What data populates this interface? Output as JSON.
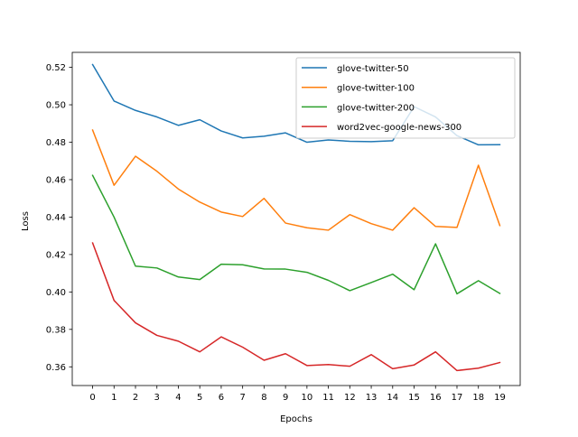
{
  "chart_data": {
    "type": "line",
    "title": "",
    "xlabel": "Epochs",
    "ylabel": "Loss",
    "x": [
      0,
      1,
      2,
      3,
      4,
      5,
      6,
      7,
      8,
      9,
      10,
      11,
      12,
      13,
      14,
      15,
      16,
      17,
      18,
      19
    ],
    "xlim": [
      -0.95,
      19.95
    ],
    "ylim": [
      0.35,
      0.528
    ],
    "yticks": [
      0.36,
      0.38,
      0.4,
      0.42,
      0.44,
      0.46,
      0.48,
      0.5,
      0.52
    ],
    "ytick_labels": [
      "0.36",
      "0.38",
      "0.40",
      "0.42",
      "0.44",
      "0.46",
      "0.48",
      "0.50",
      "0.52"
    ],
    "xtick_labels": [
      "0",
      "1",
      "2",
      "3",
      "4",
      "5",
      "6",
      "7",
      "8",
      "9",
      "10",
      "11",
      "12",
      "13",
      "14",
      "15",
      "16",
      "17",
      "18",
      "19"
    ],
    "grid": false,
    "legend_position": "upper-right",
    "series": [
      {
        "name": "glove-twitter-50",
        "color": "#1f77b4",
        "values": [
          0.5215,
          0.502,
          0.497,
          0.4935,
          0.489,
          0.492,
          0.486,
          0.4823,
          0.4832,
          0.485,
          0.48,
          0.4812,
          0.4805,
          0.4803,
          0.4808,
          0.499,
          0.4935,
          0.4835,
          0.4786,
          0.4787
        ]
      },
      {
        "name": "glove-twitter-100",
        "color": "#ff7f0e",
        "values": [
          0.4865,
          0.457,
          0.4725,
          0.4645,
          0.455,
          0.448,
          0.4427,
          0.4403,
          0.45,
          0.4368,
          0.4343,
          0.433,
          0.4413,
          0.4365,
          0.433,
          0.445,
          0.435,
          0.4345,
          0.4677,
          0.4355
        ]
      },
      {
        "name": "glove-twitter-200",
        "color": "#2ca02c",
        "values": [
          0.4623,
          0.44,
          0.4138,
          0.4128,
          0.408,
          0.4066,
          0.4148,
          0.4145,
          0.4123,
          0.4122,
          0.4105,
          0.4062,
          0.4007,
          0.405,
          0.4095,
          0.4012,
          0.4257,
          0.399,
          0.406,
          0.3992
        ]
      },
      {
        "name": "word2vec-google-news-300",
        "color": "#d62728",
        "values": [
          0.4262,
          0.3955,
          0.3835,
          0.3768,
          0.3737,
          0.368,
          0.376,
          0.3705,
          0.3635,
          0.367,
          0.3607,
          0.3612,
          0.3603,
          0.3665,
          0.359,
          0.361,
          0.368,
          0.358,
          0.3593,
          0.3623
        ]
      }
    ]
  }
}
